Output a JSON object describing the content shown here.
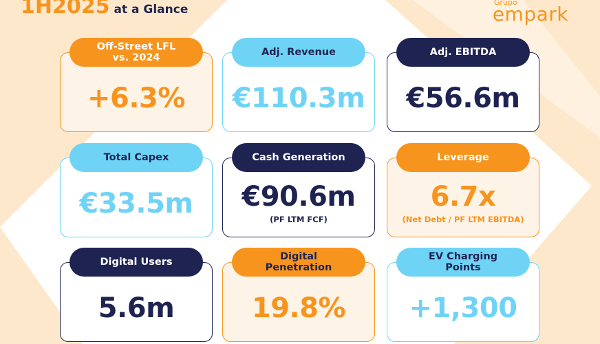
{
  "header": {
    "title": "1H2025",
    "subtitle": "at a Glance"
  },
  "logo": {
    "prefix": "Grupo",
    "name": "empark"
  },
  "cards": [
    {
      "label": "Off-Street LFL vs. 2024",
      "value": "+6.3%"
    },
    {
      "label": "Adj. Revenue",
      "value": "€110.3m"
    },
    {
      "label": "Adj. EBITDA",
      "value": "€56.6m"
    },
    {
      "label": "Total Capex",
      "value": "€33.5m"
    },
    {
      "label": "Cash Generation",
      "value": "€90.6m",
      "note": "(PF LTM FCF)"
    },
    {
      "label": "Leverage",
      "value": "6.7x",
      "note": "(Net Debt / PF LTM EBITDA)"
    },
    {
      "label": "Digital Users",
      "value": "5.6m"
    },
    {
      "label": "Digital Penetration",
      "value": "19.8%"
    },
    {
      "label": "EV Charging Points",
      "value": "+1,300"
    }
  ]
}
